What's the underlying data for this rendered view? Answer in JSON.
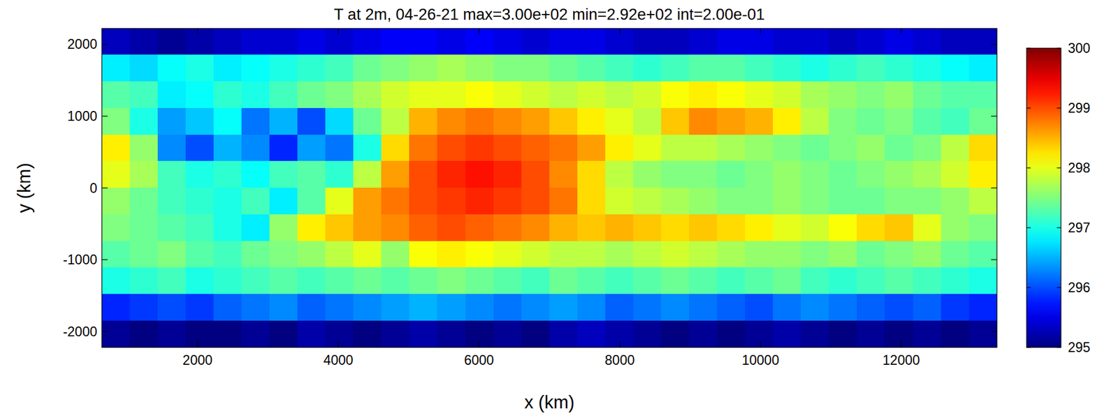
{
  "chart_data": {
    "type": "heatmap",
    "title": "T at 2m, 04-26-21 max=3.00e+02 min=2.92e+02 int=2.00e-01",
    "x_label": "x (km)",
    "y_label": "y (km)",
    "xlim": [
      640,
      13360
    ],
    "ylim": [
      -2222,
      2222
    ],
    "xticks": [
      2000,
      4000,
      6000,
      8000,
      10000,
      12000
    ],
    "yticks": [
      -2000,
      -1000,
      0,
      1000,
      2000
    ],
    "x": [
      839,
      1236,
      1634,
      2031,
      2429,
      2826,
      3224,
      3621,
      4019,
      4416,
      4814,
      5211,
      5609,
      6006,
      6404,
      6801,
      7199,
      7596,
      7994,
      8391,
      8789,
      9186,
      9584,
      9981,
      10379,
      10776,
      11174,
      11571,
      11969,
      12366,
      12764,
      13161
    ],
    "y": [
      2037,
      1667,
      1296,
      926,
      555,
      185,
      -185,
      -555,
      -926,
      -1296,
      -1667,
      -2037
    ],
    "values": [
      [
        295.3,
        295.2,
        295.1,
        295.2,
        295.3,
        295.4,
        295.4,
        295.5,
        295.4,
        295.5,
        295.6,
        295.6,
        295.5,
        295.6,
        295.5,
        295.4,
        295.5,
        295.5,
        295.4,
        295.3,
        295.3,
        295.4,
        295.5,
        295.5,
        295.4,
        295.4,
        295.3,
        295.4,
        295.5,
        295.4,
        295.3,
        295.3
      ],
      [
        296.8,
        296.7,
        296.9,
        297.0,
        296.8,
        296.9,
        297.0,
        297.1,
        297.2,
        297.4,
        297.5,
        297.6,
        297.7,
        297.6,
        297.5,
        297.5,
        297.4,
        297.3,
        297.2,
        297.1,
        297.2,
        297.3,
        297.3,
        297.2,
        297.1,
        297.0,
        297.1,
        297.2,
        297.1,
        297.0,
        296.9,
        296.8
      ],
      [
        297.3,
        297.2,
        296.8,
        296.9,
        297.1,
        297.0,
        297.2,
        297.4,
        297.5,
        297.7,
        297.9,
        298.0,
        298.0,
        298.1,
        298.0,
        297.9,
        297.8,
        297.9,
        297.8,
        297.9,
        298.1,
        298.2,
        298.1,
        298.0,
        297.9,
        297.7,
        297.6,
        297.5,
        297.6,
        297.4,
        297.3,
        297.3
      ],
      [
        297.5,
        297.0,
        296.4,
        296.6,
        296.9,
        296.2,
        296.5,
        296.0,
        296.7,
        297.4,
        297.8,
        298.5,
        298.7,
        298.8,
        298.7,
        298.6,
        298.4,
        298.2,
        298.0,
        297.8,
        298.4,
        298.7,
        298.6,
        298.5,
        298.2,
        297.8,
        297.5,
        297.4,
        297.5,
        297.3,
        297.2,
        297.4
      ],
      [
        298.2,
        297.6,
        296.3,
        296.0,
        296.5,
        296.3,
        295.8,
        296.4,
        296.2,
        297.0,
        298.3,
        298.8,
        299.0,
        299.1,
        299.0,
        298.9,
        298.8,
        298.6,
        298.2,
        298.0,
        297.8,
        297.8,
        297.7,
        297.6,
        297.5,
        297.4,
        297.5,
        297.6,
        297.4,
        297.5,
        297.8,
        298.3
      ],
      [
        298.0,
        297.7,
        297.2,
        297.0,
        297.1,
        296.9,
        297.2,
        297.3,
        297.1,
        297.8,
        298.6,
        299.0,
        299.2,
        299.3,
        299.2,
        299.0,
        298.7,
        298.3,
        297.8,
        297.6,
        297.5,
        297.5,
        297.4,
        297.5,
        297.6,
        297.5,
        297.4,
        297.5,
        297.6,
        297.7,
        297.9,
        298.2
      ],
      [
        297.6,
        297.4,
        297.2,
        297.1,
        297.0,
        297.2,
        296.8,
        297.3,
        298.0,
        298.6,
        298.8,
        299.0,
        299.1,
        299.2,
        299.1,
        299.0,
        298.8,
        298.3,
        297.9,
        297.8,
        297.7,
        297.6,
        297.5,
        297.5,
        297.6,
        297.5,
        297.4,
        297.4,
        297.5,
        297.5,
        297.6,
        297.8
      ],
      [
        297.5,
        297.4,
        297.3,
        297.2,
        297.0,
        296.8,
        297.6,
        298.2,
        298.4,
        298.6,
        298.7,
        298.9,
        299.0,
        298.9,
        298.8,
        298.7,
        298.5,
        298.4,
        298.5,
        298.4,
        298.3,
        298.4,
        298.3,
        298.2,
        298.0,
        297.9,
        298.1,
        298.3,
        298.4,
        298.0,
        297.6,
        297.5
      ],
      [
        297.3,
        297.4,
        297.5,
        297.3,
        297.2,
        297.4,
        297.5,
        297.6,
        297.8,
        298.0,
        297.6,
        298.1,
        298.2,
        298.1,
        298.0,
        297.9,
        297.8,
        297.8,
        297.7,
        297.8,
        297.9,
        297.8,
        297.7,
        297.6,
        297.6,
        297.5,
        297.6,
        297.4,
        297.5,
        297.6,
        297.4,
        297.3
      ],
      [
        297.0,
        297.1,
        297.2,
        297.0,
        297.1,
        297.2,
        297.3,
        297.2,
        297.3,
        297.4,
        297.3,
        297.4,
        297.5,
        297.4,
        297.3,
        297.2,
        297.4,
        297.3,
        297.2,
        297.3,
        297.4,
        297.3,
        297.2,
        297.3,
        297.4,
        297.2,
        297.1,
        297.2,
        297.3,
        297.2,
        297.1,
        297.0
      ],
      [
        295.8,
        295.9,
        296.0,
        295.9,
        296.1,
        296.2,
        296.3,
        296.1,
        296.2,
        296.3,
        296.4,
        296.5,
        296.4,
        296.3,
        296.2,
        296.3,
        296.4,
        296.3,
        296.1,
        296.2,
        296.3,
        296.2,
        296.1,
        296.0,
        296.2,
        296.3,
        296.2,
        296.1,
        296.0,
        296.1,
        295.9,
        295.8
      ],
      [
        295.1,
        295.0,
        295.1,
        295.0,
        295.0,
        295.1,
        295.0,
        295.2,
        295.1,
        295.0,
        295.1,
        295.2,
        295.1,
        295.0,
        295.1,
        295.0,
        295.2,
        295.3,
        295.2,
        295.1,
        295.0,
        295.1,
        295.0,
        295.1,
        295.2,
        295.1,
        295.0,
        295.1,
        295.0,
        295.1,
        295.0,
        295.1
      ]
    ],
    "colorbar_range": [
      295,
      300
    ],
    "colorbar_ticks": [
      295,
      296,
      297,
      298,
      299,
      300
    ]
  }
}
